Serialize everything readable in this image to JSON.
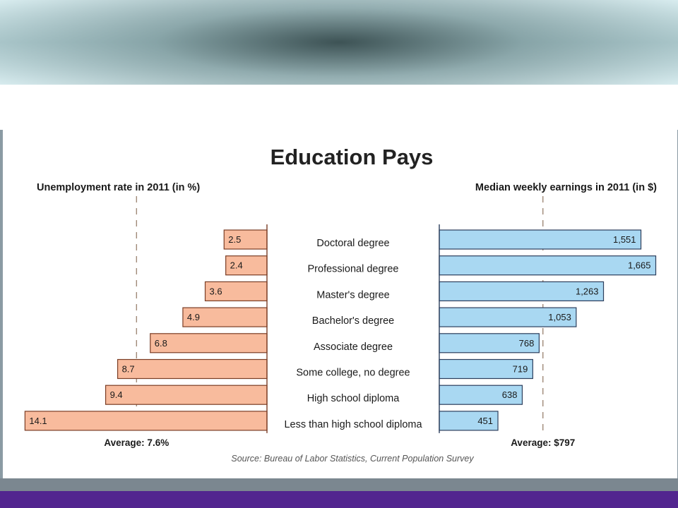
{
  "chart_data": {
    "type": "bar",
    "title": "Education Pays",
    "categories": [
      "Doctoral degree",
      "Professional degree",
      "Master's degree",
      "Bachelor's degree",
      "Associate degree",
      "Some college, no degree",
      "High school diploma",
      "Less than high school diploma"
    ],
    "unemployment": {
      "label": "Unemployment rate in 2011 (in %)",
      "values": [
        2.5,
        2.4,
        3.6,
        4.9,
        6.8,
        8.7,
        9.4,
        14.1
      ],
      "value_labels": [
        "2.5",
        "2.4",
        "3.6",
        "4.9",
        "6.8",
        "8.7",
        "9.4",
        "14.1"
      ],
      "average": 7.6,
      "average_label": "Average: 7.6%",
      "color": "#f8bb9d"
    },
    "earnings": {
      "label": "Median weekly earnings in 2011 (in $)",
      "values": [
        1551,
        1665,
        1263,
        1053,
        768,
        719,
        638,
        451
      ],
      "value_labels": [
        "1,551",
        "1,665",
        "1,263",
        "1,053",
        "768",
        "719",
        "638",
        "451"
      ],
      "average": 797,
      "average_label": "Average: $797",
      "color": "#a9d8f2"
    },
    "source": "Source: Bureau of Labor Statistics, Current Population Survey"
  }
}
